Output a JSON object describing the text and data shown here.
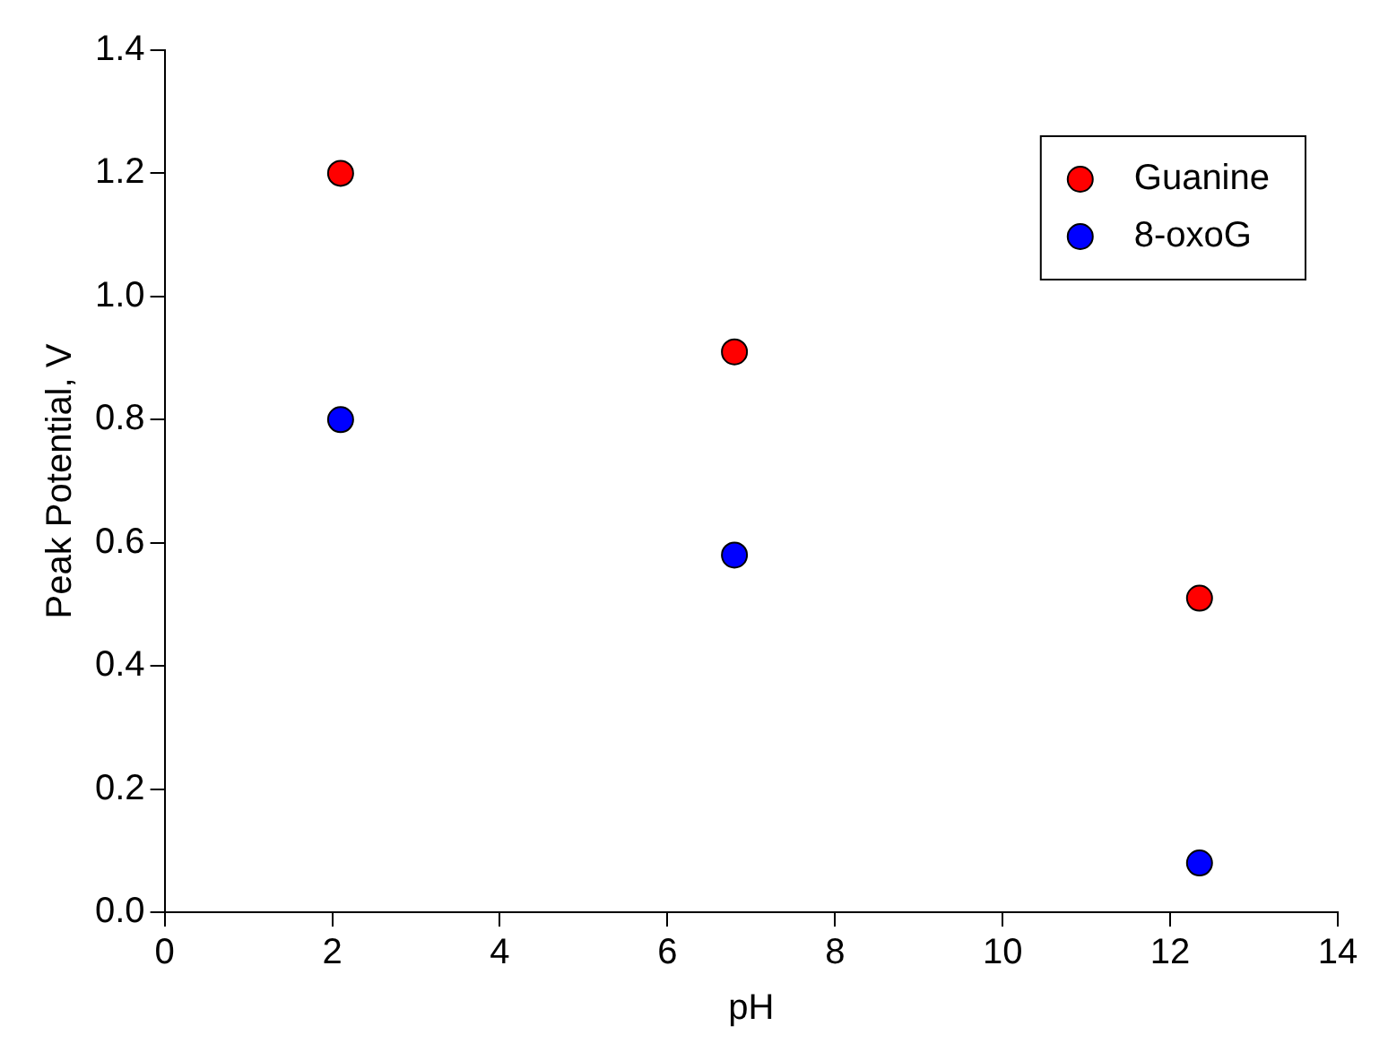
{
  "chart_data": {
    "type": "scatter",
    "xlabel": "pH",
    "ylabel": "Peak Potential, V",
    "x": [
      2.1,
      6.8,
      12.35
    ],
    "series": [
      {
        "name": "Guanine",
        "color": "#ff0000",
        "values": [
          1.2,
          0.91,
          0.51
        ]
      },
      {
        "name": "8-oxoG",
        "color": "#0000ff",
        "values": [
          0.8,
          0.58,
          0.08
        ]
      }
    ],
    "xlim": [
      0,
      14
    ],
    "xticks": [
      0,
      2,
      4,
      6,
      8,
      10,
      12,
      14
    ],
    "ylim": [
      0,
      1.4
    ],
    "yticks": [
      {
        "value": 0,
        "label": "0.0"
      },
      {
        "value": 0.2,
        "label": "0.2"
      },
      {
        "value": 0.4,
        "label": "0.4"
      },
      {
        "value": 0.6,
        "label": "0.6"
      },
      {
        "value": 0.8,
        "label": "0.8"
      },
      {
        "value": 1,
        "label": "1.0"
      },
      {
        "value": 1.2,
        "label": "1.2"
      },
      {
        "value": 1.4,
        "label": "1.4"
      }
    ],
    "grid": false,
    "legend": "top right",
    "marker": "circle"
  }
}
